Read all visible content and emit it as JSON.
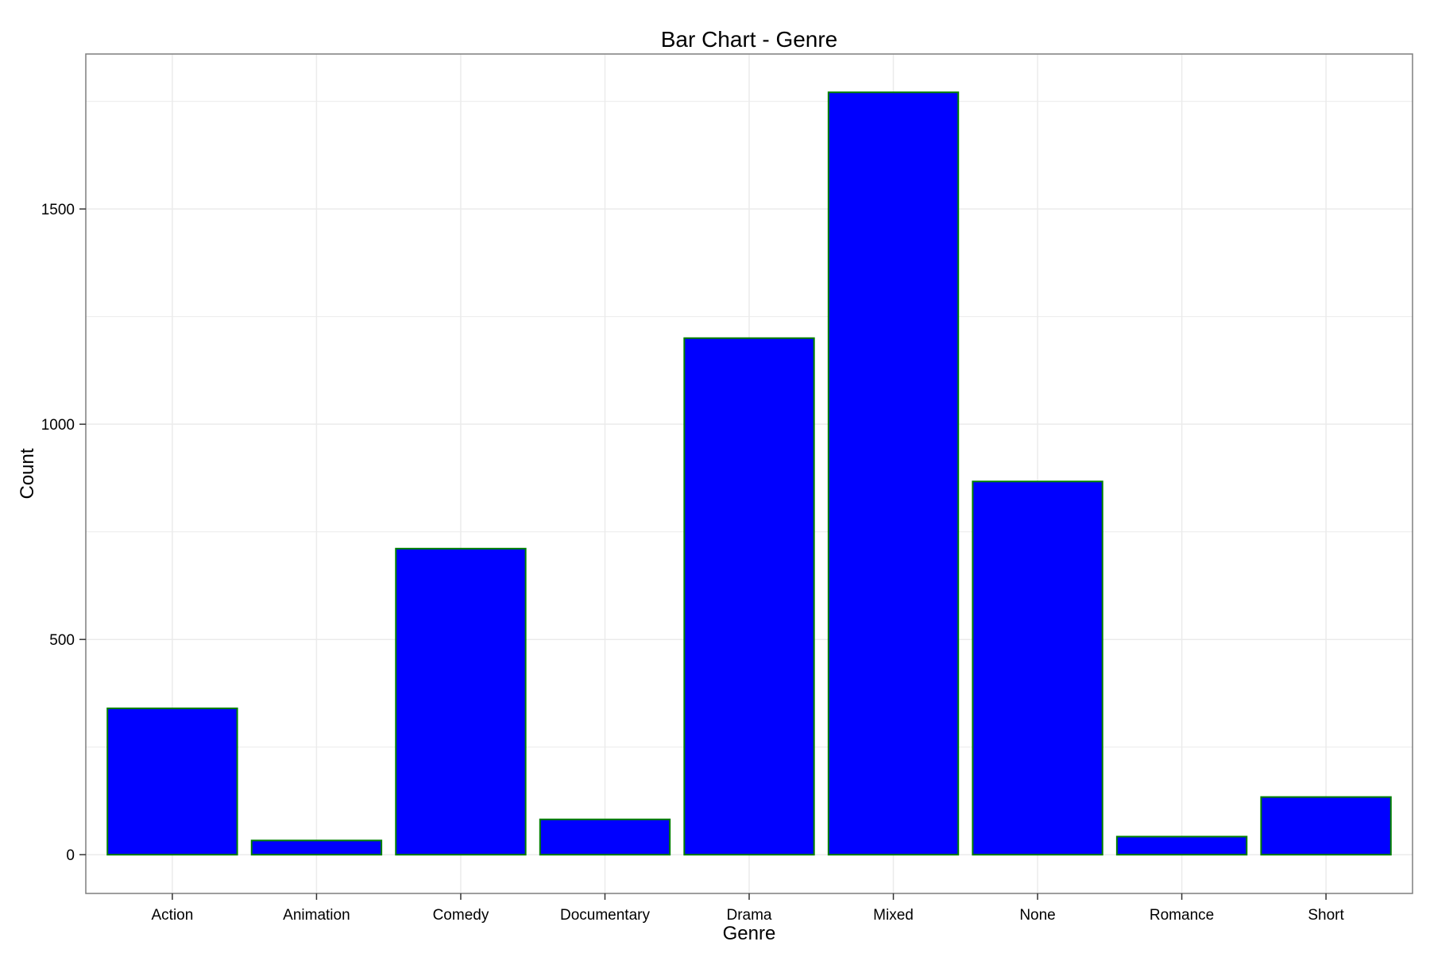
{
  "chart_data": {
    "type": "bar",
    "title": "Bar Chart - Genre",
    "xlabel": "Genre",
    "ylabel": "Count",
    "categories": [
      "Action",
      "Animation",
      "Comedy",
      "Documentary",
      "Drama",
      "Mixed",
      "None",
      "Romance",
      "Short"
    ],
    "values": [
      340,
      33,
      711,
      82,
      1200,
      1771,
      867,
      42,
      134
    ],
    "ylim": [
      -90,
      1860
    ],
    "yticks": [
      0,
      500,
      1000,
      1500
    ],
    "ytick_labels": [
      "0",
      "500",
      "1000",
      "1500"
    ],
    "grid": true,
    "legend": "none",
    "colors": {
      "bar_fill": "#0000ff",
      "bar_outline": "#008000",
      "grid": "#ebebeb",
      "panel_border": "#7f7f7f"
    }
  }
}
